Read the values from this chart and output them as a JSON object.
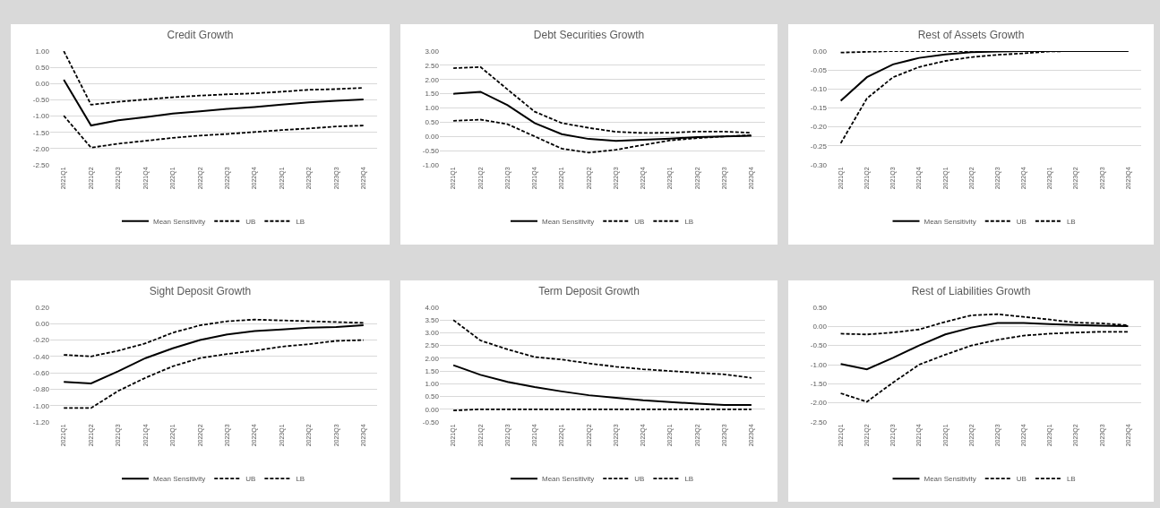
{
  "chart_data": [
    {
      "type": "line",
      "title": "Credit Growth",
      "categories": [
        "2021Q1",
        "2021Q2",
        "2021Q3",
        "2021Q4",
        "2022Q1",
        "2022Q2",
        "2022Q3",
        "2022Q4",
        "2023Q1",
        "2023Q2",
        "2023Q3",
        "2023Q4"
      ],
      "ylim": [
        -2.5,
        1
      ],
      "yticks": [
        {
          "value": 1,
          "label": "1.00"
        },
        {
          "value": 0.5,
          "label": "0.50"
        },
        {
          "value": 0,
          "label": "0.00"
        },
        {
          "value": -0.5,
          "label": "-0.50"
        },
        {
          "value": -1,
          "label": "-1.00"
        },
        {
          "value": -1.5,
          "label": "-1.50"
        },
        {
          "value": -2,
          "label": "-2.00"
        },
        {
          "value": -2.5,
          "label": "-2.50"
        }
      ],
      "grid": "y",
      "legend": "bottom",
      "series": [
        {
          "name": "Mean Sensitivity",
          "color": "#000000",
          "line_style": "solid",
          "values": [
            0.12,
            -1.29,
            -1.13,
            -1.03,
            -0.92,
            -0.85,
            -0.78,
            -0.72,
            -0.65,
            -0.58,
            -0.53,
            -0.49
          ]
        },
        {
          "name": "UB",
          "color": "#000000",
          "line_style": "dashed",
          "values": [
            1.0,
            -0.65,
            -0.56,
            -0.49,
            -0.42,
            -0.37,
            -0.33,
            -0.3,
            -0.25,
            -0.19,
            -0.17,
            -0.13
          ]
        },
        {
          "name": "LB",
          "color": "#000000",
          "line_style": "dashed",
          "values": [
            -0.99,
            -1.97,
            -1.85,
            -1.76,
            -1.67,
            -1.6,
            -1.55,
            -1.49,
            -1.43,
            -1.38,
            -1.32,
            -1.29
          ]
        }
      ]
    },
    {
      "type": "line",
      "title": "Debt Securities Growth",
      "categories": [
        "2021Q1",
        "2021Q2",
        "2021Q3",
        "2021Q4",
        "2022Q1",
        "2022Q2",
        "2022Q3",
        "2022Q4",
        "2023Q1",
        "2023Q2",
        "2023Q3",
        "2023Q4"
      ],
      "ylim": [
        -1,
        3
      ],
      "yticks": [
        {
          "value": 3,
          "label": "3.00"
        },
        {
          "value": 2.5,
          "label": "2.50"
        },
        {
          "value": 2,
          "label": "2.00"
        },
        {
          "value": 1.5,
          "label": "1.50"
        },
        {
          "value": 1,
          "label": "1.00"
        },
        {
          "value": 0.5,
          "label": "0.50"
        },
        {
          "value": 0,
          "label": "0.00"
        },
        {
          "value": -0.5,
          "label": "-0.50"
        },
        {
          "value": -1,
          "label": "-1.00"
        }
      ],
      "grid": "y",
      "legend": "bottom",
      "series": [
        {
          "name": "Mean Sensitivity",
          "color": "#000000",
          "line_style": "solid",
          "values": [
            1.5,
            1.57,
            1.1,
            0.47,
            0.08,
            -0.09,
            -0.16,
            -0.12,
            -0.08,
            -0.02,
            0,
            0.02
          ]
        },
        {
          "name": "UB",
          "color": "#000000",
          "line_style": "dashed",
          "values": [
            2.4,
            2.44,
            1.65,
            0.87,
            0.47,
            0.3,
            0.16,
            0.12,
            0.13,
            0.17,
            0.17,
            0.13
          ]
        },
        {
          "name": "LB",
          "color": "#000000",
          "line_style": "dashed",
          "values": [
            0.55,
            0.59,
            0.43,
            0,
            -0.43,
            -0.57,
            -0.47,
            -0.3,
            -0.14,
            -0.06,
            0,
            0.04
          ]
        }
      ]
    },
    {
      "type": "line",
      "title": "Rest of Assets Growth",
      "categories": [
        "2021Q1",
        "2021Q2",
        "2021Q3",
        "2021Q4",
        "2022Q1",
        "2022Q2",
        "2022Q3",
        "2022Q4",
        "2023Q1",
        "2023Q2",
        "2023Q3",
        "2023Q4"
      ],
      "ylim": [
        -0.3,
        0
      ],
      "yticks": [
        {
          "value": 0,
          "label": "0.00"
        },
        {
          "value": -0.05,
          "label": "-0.05"
        },
        {
          "value": -0.1,
          "label": "-0.10"
        },
        {
          "value": -0.15,
          "label": "-0.15"
        },
        {
          "value": -0.2,
          "label": "-0.20"
        },
        {
          "value": -0.25,
          "label": "-0.25"
        },
        {
          "value": -0.3,
          "label": "-0.30"
        }
      ],
      "grid": "y",
      "legend": "bottom",
      "series": [
        {
          "name": "Mean Sensitivity",
          "color": "#000000",
          "line_style": "solid",
          "values": [
            -0.131,
            -0.069,
            -0.035,
            -0.018,
            -0.009,
            -0.003,
            -0.001,
            0,
            0,
            0,
            0,
            0
          ]
        },
        {
          "name": "UB",
          "color": "#000000",
          "line_style": "dashed",
          "values": [
            -0.004,
            -0.002,
            0,
            0,
            0,
            0,
            0,
            0,
            0,
            0,
            0,
            0
          ]
        },
        {
          "name": "LB",
          "color": "#000000",
          "line_style": "dashed",
          "values": [
            -0.243,
            -0.125,
            -0.069,
            -0.042,
            -0.026,
            -0.016,
            -0.01,
            -0.006,
            -0.001,
            0,
            0,
            0
          ]
        }
      ]
    },
    {
      "type": "line",
      "title": "Sight Deposit Growth",
      "categories": [
        "2021Q1",
        "2021Q2",
        "2021Q3",
        "2021Q4",
        "2022Q1",
        "2022Q2",
        "2022Q3",
        "2022Q4",
        "2023Q1",
        "2023Q2",
        "2023Q3",
        "2023Q4"
      ],
      "ylim": [
        -1.2,
        0.2
      ],
      "yticks": [
        {
          "value": 0.2,
          "label": "0.20"
        },
        {
          "value": 0,
          "label": "0.00"
        },
        {
          "value": -0.2,
          "label": "-0.20"
        },
        {
          "value": -0.4,
          "label": "-0.40"
        },
        {
          "value": -0.6,
          "label": "-0.60"
        },
        {
          "value": -0.8,
          "label": "-0.80"
        },
        {
          "value": -1,
          "label": "-1.00"
        },
        {
          "value": -1.2,
          "label": "-1.20"
        }
      ],
      "grid": "y",
      "legend": "bottom",
      "series": [
        {
          "name": "Mean Sensitivity",
          "color": "#000000",
          "line_style": "solid",
          "values": [
            -0.71,
            -0.73,
            -0.58,
            -0.42,
            -0.3,
            -0.2,
            -0.13,
            -0.09,
            -0.07,
            -0.05,
            -0.04,
            -0.02
          ]
        },
        {
          "name": "UB",
          "color": "#000000",
          "line_style": "dashed",
          "values": [
            -0.38,
            -0.4,
            -0.33,
            -0.24,
            -0.11,
            -0.02,
            0.03,
            0.05,
            0.04,
            0.03,
            0.02,
            0.01
          ]
        },
        {
          "name": "LB",
          "color": "#000000",
          "line_style": "dashed",
          "values": [
            -1.03,
            -1.03,
            -0.82,
            -0.66,
            -0.52,
            -0.42,
            -0.37,
            -0.33,
            -0.28,
            -0.25,
            -0.21,
            -0.2
          ]
        }
      ]
    },
    {
      "type": "line",
      "title": "Term Deposit Growth",
      "categories": [
        "2021Q1",
        "2021Q2",
        "2021Q3",
        "2021Q4",
        "2022Q1",
        "2022Q2",
        "2022Q3",
        "2022Q4",
        "2023Q1",
        "2023Q2",
        "2023Q3",
        "2023Q4"
      ],
      "ylim": [
        -0.5,
        4
      ],
      "yticks": [
        {
          "value": 4,
          "label": "4.00"
        },
        {
          "value": 3.5,
          "label": "3.50"
        },
        {
          "value": 3,
          "label": "3.00"
        },
        {
          "value": 2.5,
          "label": "2.50"
        },
        {
          "value": 2,
          "label": "2.00"
        },
        {
          "value": 1.5,
          "label": "1.50"
        },
        {
          "value": 1,
          "label": "1.00"
        },
        {
          "value": 0.5,
          "label": "0.50"
        },
        {
          "value": 0,
          "label": "0.00"
        },
        {
          "value": -0.5,
          "label": "-0.50"
        }
      ],
      "grid": "y",
      "legend": "bottom",
      "series": [
        {
          "name": "Mean Sensitivity",
          "color": "#000000",
          "line_style": "solid",
          "values": [
            1.73,
            1.35,
            1.07,
            0.87,
            0.7,
            0.55,
            0.45,
            0.35,
            0.28,
            0.22,
            0.17,
            0.17
          ]
        },
        {
          "name": "UB",
          "color": "#000000",
          "line_style": "dashed",
          "values": [
            3.5,
            2.7,
            2.35,
            2.05,
            1.95,
            1.8,
            1.67,
            1.57,
            1.5,
            1.43,
            1.37,
            1.23
          ]
        },
        {
          "name": "LB",
          "color": "#000000",
          "line_style": "dashed",
          "values": [
            -0.05,
            0,
            0,
            0,
            0,
            0,
            0,
            0,
            0,
            0,
            0,
            0
          ]
        }
      ]
    },
    {
      "type": "line",
      "title": "Rest of Liabilities Growth",
      "categories": [
        "2021Q1",
        "2021Q2",
        "2021Q3",
        "2021Q4",
        "2022Q1",
        "2022Q2",
        "2022Q3",
        "2022Q4",
        "2023Q1",
        "2023Q2",
        "2023Q3",
        "2023Q4"
      ],
      "ylim": [
        -2.5,
        0.5
      ],
      "yticks": [
        {
          "value": 0.5,
          "label": "0.50"
        },
        {
          "value": 0,
          "label": "0.00"
        },
        {
          "value": -0.5,
          "label": "-0.50"
        },
        {
          "value": -1,
          "label": "-1.00"
        },
        {
          "value": -1.5,
          "label": "-1.50"
        },
        {
          "value": -2,
          "label": "-2.00"
        },
        {
          "value": -2.5,
          "label": "-2.50"
        }
      ],
      "grid": "y",
      "legend": "bottom",
      "series": [
        {
          "name": "Mean Sensitivity",
          "color": "#000000",
          "line_style": "solid",
          "values": [
            -0.98,
            -1.12,
            -0.82,
            -0.5,
            -0.21,
            -0.03,
            0.09,
            0.09,
            0.06,
            0.04,
            0.02,
            0.01
          ]
        },
        {
          "name": "UB",
          "color": "#000000",
          "line_style": "dashed",
          "values": [
            -0.19,
            -0.21,
            -0.16,
            -0.08,
            0.12,
            0.29,
            0.32,
            0.25,
            0.18,
            0.1,
            0.08,
            0.03
          ]
        },
        {
          "name": "LB",
          "color": "#000000",
          "line_style": "dashed",
          "values": [
            -1.75,
            -1.97,
            -1.47,
            -1.0,
            -0.74,
            -0.5,
            -0.35,
            -0.24,
            -0.19,
            -0.16,
            -0.14,
            -0.14
          ]
        }
      ]
    }
  ]
}
